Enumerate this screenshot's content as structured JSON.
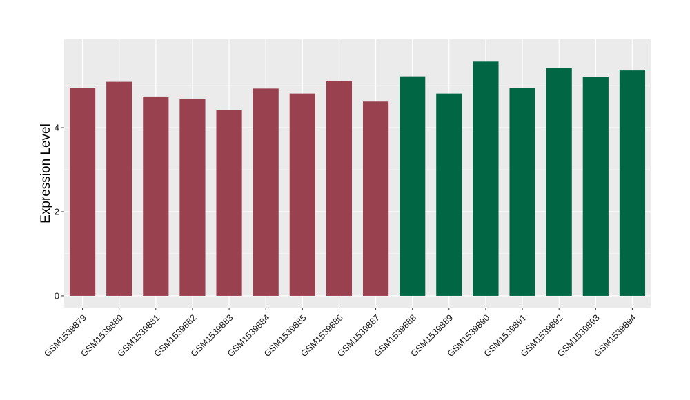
{
  "chart_data": {
    "type": "bar",
    "xlabel": "",
    "ylabel": "Expression Level",
    "ylim": [
      -0.28,
      6.1
    ],
    "yticks": [
      0,
      2,
      4
    ],
    "grid": true,
    "legend": "none",
    "categories": [
      "GSM1539879",
      "GSM1539880",
      "GSM1539881",
      "GSM1539882",
      "GSM1539883",
      "GSM1539884",
      "GSM1539885",
      "GSM1539886",
      "GSM1539887",
      "GSM1539888",
      "GSM1539889",
      "GSM1539890",
      "GSM1539891",
      "GSM1539892",
      "GSM1539893",
      "GSM1539894"
    ],
    "values": [
      4.95,
      5.09,
      4.74,
      4.69,
      4.42,
      4.93,
      4.81,
      5.1,
      4.62,
      5.22,
      4.81,
      5.57,
      4.94,
      5.42,
      5.21,
      5.36
    ],
    "bar_colors": [
      "#9a4150",
      "#9a4150",
      "#9a4150",
      "#9a4150",
      "#9a4150",
      "#9a4150",
      "#9a4150",
      "#9a4150",
      "#9a4150",
      "#006644",
      "#006644",
      "#006644",
      "#006644",
      "#006644",
      "#006644",
      "#006644"
    ],
    "panel_background": "#ebebeb",
    "grid_color": "#ffffff"
  }
}
